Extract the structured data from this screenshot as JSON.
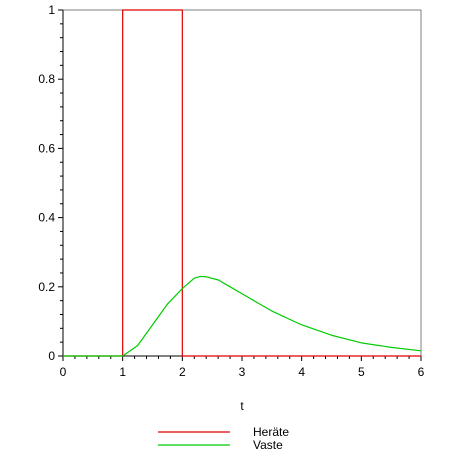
{
  "chart_data": {
    "type": "line",
    "title": "",
    "xlabel": "t",
    "ylabel": "",
    "xlim": [
      0,
      6
    ],
    "ylim": [
      0,
      1
    ],
    "x_ticks": [
      0,
      1,
      2,
      3,
      4,
      5,
      6
    ],
    "x_tick_labels": [
      "0",
      "1",
      "2",
      "3",
      "4",
      "5",
      "6"
    ],
    "y_ticks": [
      0,
      0.2,
      0.4,
      0.6,
      0.8,
      1
    ],
    "y_tick_labels": [
      "0",
      "0.2",
      "0.4",
      "0.6",
      "0.8",
      "1"
    ],
    "grid": false,
    "legend_position": "bottom-center",
    "series": [
      {
        "name": "Heräte",
        "color": "#e00000",
        "x": [
          0,
          1,
          1,
          2,
          2,
          6
        ],
        "y": [
          0,
          0,
          1,
          1,
          0,
          0
        ]
      },
      {
        "name": "Vaste",
        "color": "#00cc00",
        "x": [
          0,
          1,
          1.25,
          1.5,
          1.75,
          2,
          2.2,
          2.3,
          2.4,
          2.6,
          2.8,
          3,
          3.25,
          3.5,
          4,
          4.5,
          5,
          5.5,
          6
        ],
        "y": [
          0,
          0,
          0.03,
          0.09,
          0.15,
          0.195,
          0.225,
          0.23,
          0.229,
          0.22,
          0.2,
          0.18,
          0.155,
          0.13,
          0.09,
          0.06,
          0.038,
          0.025,
          0.015
        ]
      }
    ]
  }
}
